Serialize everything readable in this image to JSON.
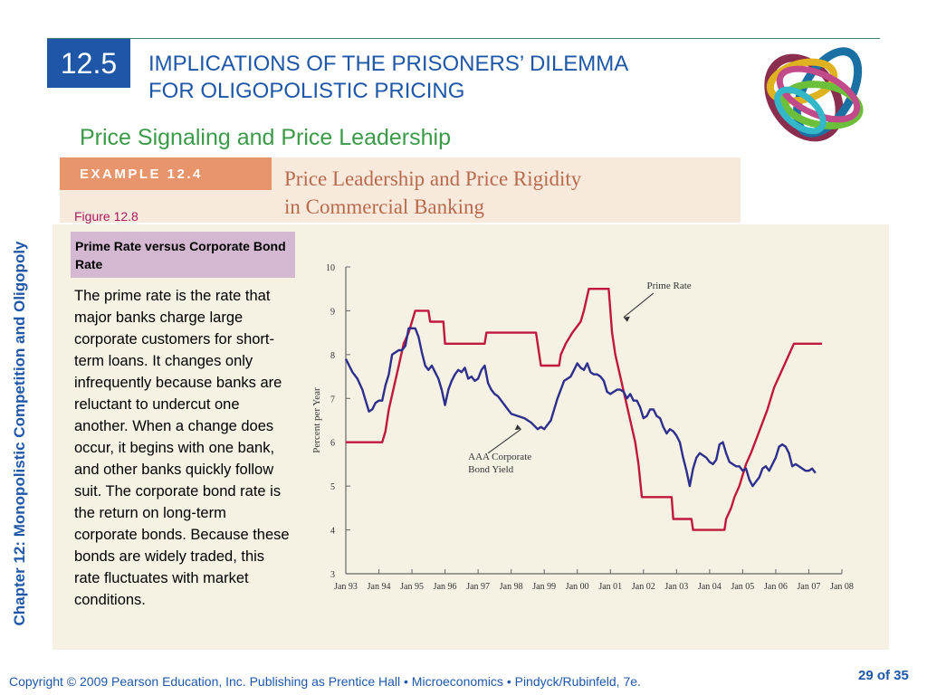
{
  "sidebar": {
    "chapter_label": "Chapter 12:  Monopolistic Competition and Oligopoly"
  },
  "header": {
    "section_number": "12.5",
    "title_line1": "IMPLICATIONS OF THE PRISONERS’ DILEMMA",
    "title_line2": "FOR OLIGOPOLISTIC PRICING",
    "subtitle": "Price Signaling and Price Leadership"
  },
  "example": {
    "tag": "EXAMPLE 12.4",
    "title_line1": "Price Leadership and Price Rigidity",
    "title_line2": "in Commercial Banking"
  },
  "figure": {
    "label": "Figure 12.8",
    "caption": "Prime Rate versus Corporate Bond Rate",
    "description": "The prime rate is the rate that major banks charge large corporate customers for short-term loans. It changes only infrequently because banks are reluctant to undercut one another. When a change does occur, it begins with one bank, and other banks quickly follow suit. The corporate bond rate is the return on long-term corporate bonds. Because these bonds are widely traded, this rate fluctuates with market conditions."
  },
  "chart_data": {
    "type": "line",
    "ylabel": "Percent per Year",
    "ylim": [
      3,
      10
    ],
    "yticks": [
      "3",
      "4",
      "5",
      "6",
      "7",
      "8",
      "9",
      "10"
    ],
    "xlim": [
      1993,
      2008
    ],
    "xticks": [
      "Jan 93",
      "Jan 94",
      "Jan 95",
      "Jan 96",
      "Jan 97",
      "Jan 98",
      "Jan 99",
      "Jan 00",
      "Jan 01",
      "Jan 02",
      "Jan 03",
      "Jan 04",
      "Jan 05",
      "Jan 06",
      "Jan 07",
      "Jan 08"
    ],
    "grid": false,
    "series": [
      {
        "name": "Prime Rate",
        "color": "#c0183c",
        "points": [
          [
            1993.0,
            6.0
          ],
          [
            1994.1,
            6.0
          ],
          [
            1994.2,
            6.25
          ],
          [
            1994.3,
            6.75
          ],
          [
            1994.45,
            7.25
          ],
          [
            1994.6,
            7.75
          ],
          [
            1994.75,
            8.25
          ],
          [
            1994.9,
            8.5
          ],
          [
            1995.1,
            9.0
          ],
          [
            1995.5,
            9.0
          ],
          [
            1995.55,
            8.75
          ],
          [
            1995.95,
            8.75
          ],
          [
            1996.0,
            8.25
          ],
          [
            1997.2,
            8.25
          ],
          [
            1997.25,
            8.5
          ],
          [
            1998.75,
            8.5
          ],
          [
            1998.8,
            8.25
          ],
          [
            1998.85,
            8.0
          ],
          [
            1998.9,
            7.75
          ],
          [
            1999.45,
            7.75
          ],
          [
            1999.5,
            8.0
          ],
          [
            1999.65,
            8.25
          ],
          [
            1999.85,
            8.5
          ],
          [
            2000.1,
            8.75
          ],
          [
            2000.2,
            9.0
          ],
          [
            2000.35,
            9.5
          ],
          [
            2000.95,
            9.5
          ],
          [
            2001.05,
            8.5
          ],
          [
            2001.15,
            8.0
          ],
          [
            2001.3,
            7.5
          ],
          [
            2001.45,
            7.0
          ],
          [
            2001.6,
            6.5
          ],
          [
            2001.75,
            6.0
          ],
          [
            2001.85,
            5.5
          ],
          [
            2001.95,
            4.75
          ],
          [
            2002.85,
            4.75
          ],
          [
            2002.9,
            4.25
          ],
          [
            2003.45,
            4.25
          ],
          [
            2003.5,
            4.0
          ],
          [
            2004.45,
            4.0
          ],
          [
            2004.5,
            4.25
          ],
          [
            2004.65,
            4.5
          ],
          [
            2004.75,
            4.75
          ],
          [
            2004.9,
            5.0
          ],
          [
            2005.1,
            5.5
          ],
          [
            2005.25,
            5.75
          ],
          [
            2005.5,
            6.25
          ],
          [
            2005.75,
            6.75
          ],
          [
            2005.95,
            7.25
          ],
          [
            2006.1,
            7.5
          ],
          [
            2006.25,
            7.75
          ],
          [
            2006.4,
            8.0
          ],
          [
            2006.55,
            8.25
          ],
          [
            2007.4,
            8.25
          ]
        ]
      },
      {
        "name": "AAA Corporate Bond Yield",
        "color": "#2e2e8c",
        "points": [
          [
            1993.0,
            7.9
          ],
          [
            1993.1,
            7.75
          ],
          [
            1993.2,
            7.6
          ],
          [
            1993.35,
            7.45
          ],
          [
            1993.5,
            7.2
          ],
          [
            1993.6,
            6.95
          ],
          [
            1993.7,
            6.7
          ],
          [
            1993.8,
            6.75
          ],
          [
            1993.9,
            6.9
          ],
          [
            1994.0,
            6.95
          ],
          [
            1994.1,
            6.95
          ],
          [
            1994.2,
            7.3
          ],
          [
            1994.3,
            7.55
          ],
          [
            1994.4,
            8.0
          ],
          [
            1994.5,
            8.05
          ],
          [
            1994.6,
            8.1
          ],
          [
            1994.7,
            8.1
          ],
          [
            1994.8,
            8.2
          ],
          [
            1994.9,
            8.6
          ],
          [
            1995.0,
            8.6
          ],
          [
            1995.1,
            8.6
          ],
          [
            1995.2,
            8.4
          ],
          [
            1995.3,
            8.05
          ],
          [
            1995.4,
            7.75
          ],
          [
            1995.5,
            7.65
          ],
          [
            1995.6,
            7.75
          ],
          [
            1995.7,
            7.6
          ],
          [
            1995.8,
            7.45
          ],
          [
            1995.9,
            7.2
          ],
          [
            1996.0,
            6.85
          ],
          [
            1996.1,
            7.2
          ],
          [
            1996.2,
            7.4
          ],
          [
            1996.3,
            7.55
          ],
          [
            1996.4,
            7.65
          ],
          [
            1996.5,
            7.6
          ],
          [
            1996.6,
            7.7
          ],
          [
            1996.7,
            7.45
          ],
          [
            1996.8,
            7.5
          ],
          [
            1996.9,
            7.4
          ],
          [
            1997.0,
            7.45
          ],
          [
            1997.1,
            7.65
          ],
          [
            1997.2,
            7.75
          ],
          [
            1997.3,
            7.35
          ],
          [
            1997.4,
            7.2
          ],
          [
            1997.5,
            7.1
          ],
          [
            1997.6,
            7.05
          ],
          [
            1997.7,
            6.95
          ],
          [
            1997.8,
            6.85
          ],
          [
            1997.9,
            6.75
          ],
          [
            1998.0,
            6.65
          ],
          [
            1998.2,
            6.6
          ],
          [
            1998.4,
            6.55
          ],
          [
            1998.5,
            6.5
          ],
          [
            1998.6,
            6.45
          ],
          [
            1998.8,
            6.3
          ],
          [
            1998.9,
            6.35
          ],
          [
            1999.0,
            6.3
          ],
          [
            1999.2,
            6.5
          ],
          [
            1999.4,
            7.0
          ],
          [
            1999.5,
            7.2
          ],
          [
            1999.6,
            7.4
          ],
          [
            1999.8,
            7.5
          ],
          [
            1999.9,
            7.65
          ],
          [
            2000.0,
            7.8
          ],
          [
            2000.1,
            7.7
          ],
          [
            2000.2,
            7.65
          ],
          [
            2000.3,
            7.8
          ],
          [
            2000.4,
            7.6
          ],
          [
            2000.5,
            7.55
          ],
          [
            2000.6,
            7.55
          ],
          [
            2000.7,
            7.5
          ],
          [
            2000.8,
            7.4
          ],
          [
            2000.9,
            7.15
          ],
          [
            2001.0,
            7.1
          ],
          [
            2001.1,
            7.15
          ],
          [
            2001.2,
            7.2
          ],
          [
            2001.3,
            7.2
          ],
          [
            2001.4,
            7.15
          ],
          [
            2001.5,
            7.0
          ],
          [
            2001.6,
            7.1
          ],
          [
            2001.7,
            6.95
          ],
          [
            2001.8,
            6.95
          ],
          [
            2001.9,
            6.8
          ],
          [
            2002.0,
            6.55
          ],
          [
            2002.1,
            6.6
          ],
          [
            2002.2,
            6.75
          ],
          [
            2002.3,
            6.75
          ],
          [
            2002.4,
            6.6
          ],
          [
            2002.5,
            6.55
          ],
          [
            2002.6,
            6.35
          ],
          [
            2002.7,
            6.2
          ],
          [
            2002.8,
            6.3
          ],
          [
            2002.9,
            6.25
          ],
          [
            2003.0,
            6.15
          ],
          [
            2003.1,
            6.0
          ],
          [
            2003.2,
            5.65
          ],
          [
            2003.3,
            5.35
          ],
          [
            2003.4,
            5.0
          ],
          [
            2003.5,
            5.4
          ],
          [
            2003.6,
            5.65
          ],
          [
            2003.7,
            5.75
          ],
          [
            2003.8,
            5.7
          ],
          [
            2003.9,
            5.65
          ],
          [
            2004.0,
            5.55
          ],
          [
            2004.1,
            5.5
          ],
          [
            2004.2,
            5.6
          ],
          [
            2004.3,
            5.95
          ],
          [
            2004.4,
            6.0
          ],
          [
            2004.5,
            5.75
          ],
          [
            2004.6,
            5.55
          ],
          [
            2004.7,
            5.5
          ],
          [
            2004.8,
            5.45
          ],
          [
            2004.9,
            5.45
          ],
          [
            2005.0,
            5.35
          ],
          [
            2005.1,
            5.4
          ],
          [
            2005.2,
            5.15
          ],
          [
            2005.3,
            5.0
          ],
          [
            2005.4,
            5.1
          ],
          [
            2005.5,
            5.2
          ],
          [
            2005.6,
            5.4
          ],
          [
            2005.7,
            5.45
          ],
          [
            2005.8,
            5.35
          ],
          [
            2005.9,
            5.5
          ],
          [
            2006.0,
            5.65
          ],
          [
            2006.1,
            5.9
          ],
          [
            2006.2,
            5.95
          ],
          [
            2006.3,
            5.9
          ],
          [
            2006.4,
            5.75
          ],
          [
            2006.5,
            5.45
          ],
          [
            2006.6,
            5.5
          ],
          [
            2006.7,
            5.45
          ],
          [
            2006.8,
            5.4
          ],
          [
            2006.9,
            5.35
          ],
          [
            2007.0,
            5.35
          ],
          [
            2007.1,
            5.4
          ],
          [
            2007.2,
            5.3
          ]
        ]
      }
    ],
    "annotations": [
      {
        "text": "Prime Rate",
        "series": "Prime Rate"
      },
      {
        "text": "AAA Corporate",
        "text2": "Bond Yield",
        "series": "AAA Corporate Bond Yield"
      }
    ]
  },
  "footer": {
    "copyright": "Copyright © 2009 Pearson Education, Inc. Publishing as Prentice Hall  •  Microeconomics  •  Pindyck/Rubinfeld, 7e.",
    "page_number": "29 of 35"
  }
}
